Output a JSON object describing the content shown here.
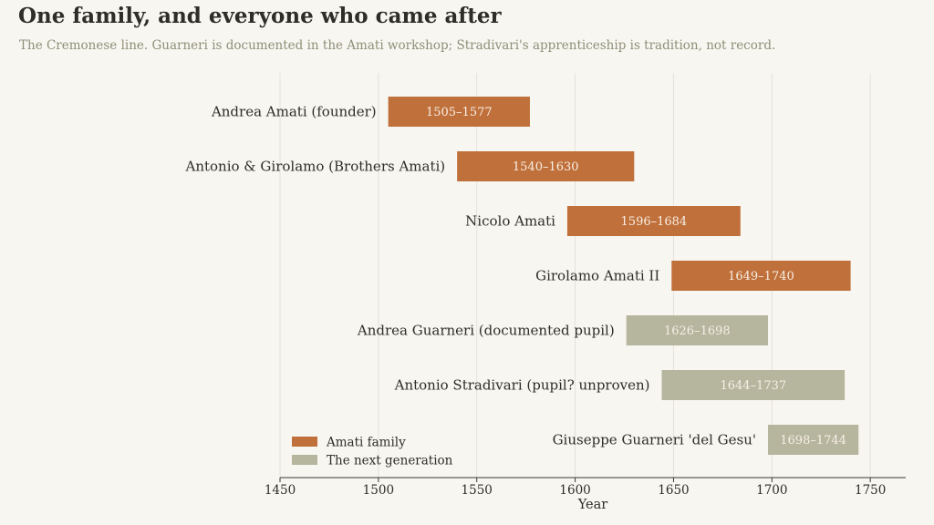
{
  "title": "One family, and everyone who came after",
  "subtitle": "The Cremonese line. Guarneri is documented in the Amati workshop; Stradivari's apprenticeship is tradition, not record.",
  "chart_data": {
    "type": "bar",
    "orientation": "horizontal",
    "xlabel": "Year",
    "xlim": [
      1450,
      1768
    ],
    "xticks": [
      1450,
      1500,
      1550,
      1600,
      1650,
      1700,
      1750
    ],
    "grid": "vertical",
    "legend_position": "bottom-left",
    "series": [
      {
        "name": "Amati family",
        "color": "#c0703a"
      },
      {
        "name": "The next generation",
        "color": "#b6b59e"
      }
    ],
    "rows": [
      {
        "label": "Andrea Amati (founder)",
        "start": 1505,
        "end": 1577,
        "range_label": "1505–1577",
        "series": 0
      },
      {
        "label": "Antonio & Girolamo (Brothers Amati)",
        "start": 1540,
        "end": 1630,
        "range_label": "1540–1630",
        "series": 0
      },
      {
        "label": "Nicolo Amati",
        "start": 1596,
        "end": 1684,
        "range_label": "1596–1684",
        "series": 0
      },
      {
        "label": "Girolamo Amati II",
        "start": 1649,
        "end": 1740,
        "range_label": "1649–1740",
        "series": 0
      },
      {
        "label": "Andrea Guarneri (documented pupil)",
        "start": 1626,
        "end": 1698,
        "range_label": "1626–1698",
        "series": 1
      },
      {
        "label": "Antonio Stradivari (pupil? unproven)",
        "start": 1644,
        "end": 1737,
        "range_label": "1644–1737",
        "series": 1
      },
      {
        "label": "Giuseppe Guarneri 'del Gesu'",
        "start": 1698,
        "end": 1744,
        "range_label": "1698–1744",
        "series": 1
      }
    ]
  }
}
